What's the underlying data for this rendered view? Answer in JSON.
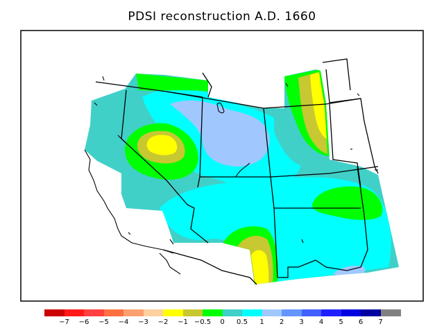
{
  "title": "PDSI reconstruction A.D. 1660",
  "legend": {
    "colors": [
      "#cc0000",
      "#ff1a1a",
      "#ff4040",
      "#ff7040",
      "#ffa070",
      "#ffd0a0",
      "#ffff00",
      "#c8c832",
      "#00ff00",
      "#40d0c8",
      "#00ffff",
      "#a0c8ff",
      "#6496ff",
      "#4060ff",
      "#2020ff",
      "#0000e0",
      "#0000a0",
      "#808080"
    ],
    "labels": [
      "−7",
      "−6",
      "−5",
      "−4",
      "−3",
      "−2",
      "−1",
      "−0.5",
      "0",
      "0.5",
      "1",
      "2",
      "3",
      "4",
      "5",
      "6",
      "7"
    ]
  }
}
